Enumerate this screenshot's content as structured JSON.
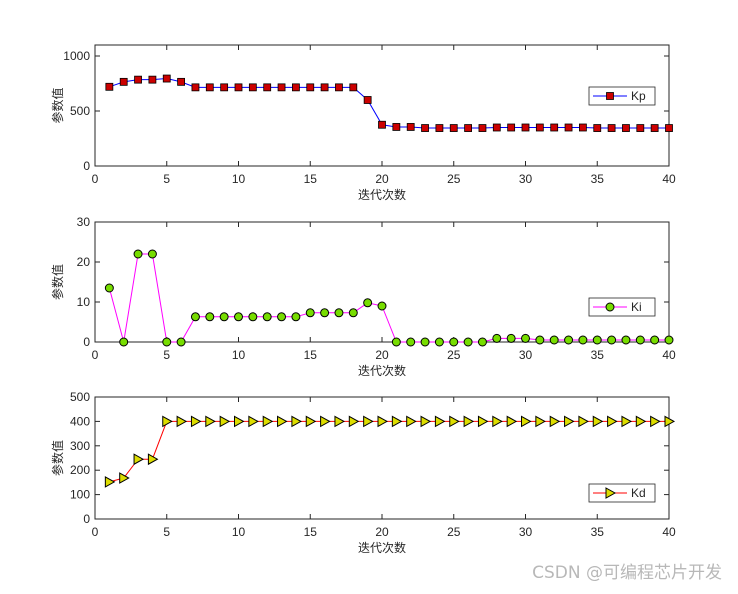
{
  "chart_data": [
    {
      "type": "line",
      "xlabel": "迭代次数",
      "ylabel": "参数值",
      "xlim": [
        0,
        40
      ],
      "ylim": [
        0,
        1100
      ],
      "xticks": [
        0,
        5,
        10,
        15,
        20,
        25,
        30,
        35,
        40
      ],
      "yticks": [
        0,
        500,
        1000
      ],
      "legend": "right",
      "line_color": "#0000ff",
      "marker": "square",
      "marker_color": "#cc0000",
      "series": [
        {
          "name": "Kp",
          "x": [
            1,
            2,
            3,
            4,
            5,
            6,
            7,
            8,
            9,
            10,
            11,
            12,
            13,
            14,
            15,
            16,
            17,
            18,
            19,
            20,
            21,
            22,
            23,
            24,
            25,
            26,
            27,
            28,
            29,
            30,
            31,
            32,
            33,
            34,
            35,
            36,
            37,
            38,
            39,
            40
          ],
          "values": [
            720,
            765,
            785,
            785,
            795,
            765,
            715,
            715,
            715,
            715,
            715,
            715,
            715,
            715,
            715,
            715,
            715,
            715,
            600,
            375,
            355,
            355,
            345,
            345,
            345,
            345,
            345,
            350,
            350,
            350,
            350,
            350,
            350,
            350,
            345,
            345,
            345,
            345,
            345,
            345
          ]
        }
      ]
    },
    {
      "type": "line",
      "xlabel": "迭代次数",
      "ylabel": "参数值",
      "xlim": [
        0,
        40
      ],
      "ylim": [
        0,
        30
      ],
      "xticks": [
        0,
        5,
        10,
        15,
        20,
        25,
        30,
        35,
        40
      ],
      "yticks": [
        0,
        10,
        20,
        30
      ],
      "legend": "right",
      "line_color": "#ff00ff",
      "marker": "circle",
      "marker_color": "#77dd00",
      "series": [
        {
          "name": "Ki",
          "x": [
            1,
            2,
            3,
            4,
            5,
            6,
            7,
            8,
            9,
            10,
            11,
            12,
            13,
            14,
            15,
            16,
            17,
            18,
            19,
            20,
            21,
            22,
            23,
            24,
            25,
            26,
            27,
            28,
            29,
            30,
            31,
            32,
            33,
            34,
            35,
            36,
            37,
            38,
            39,
            40
          ],
          "values": [
            13.5,
            0,
            22,
            22,
            0,
            0,
            6.3,
            6.3,
            6.3,
            6.3,
            6.3,
            6.3,
            6.3,
            6.3,
            7.3,
            7.3,
            7.3,
            7.3,
            9.8,
            9.0,
            0,
            0,
            0,
            0,
            0,
            0,
            0,
            0.9,
            0.9,
            0.9,
            0.5,
            0.5,
            0.5,
            0.5,
            0.5,
            0.5,
            0.5,
            0.5,
            0.5,
            0.5
          ]
        }
      ]
    },
    {
      "type": "line",
      "xlabel": "迭代次数",
      "ylabel": "参数值",
      "xlim": [
        0,
        40
      ],
      "ylim": [
        0,
        500
      ],
      "xticks": [
        0,
        5,
        10,
        15,
        20,
        25,
        30,
        35,
        40
      ],
      "yticks": [
        0,
        100,
        200,
        300,
        400,
        500
      ],
      "legend": "right",
      "line_color": "#ff0000",
      "marker": "triangle-right",
      "marker_color": "#dddd00",
      "series": [
        {
          "name": "Kd",
          "x": [
            1,
            2,
            3,
            4,
            5,
            6,
            7,
            8,
            9,
            10,
            11,
            12,
            13,
            14,
            15,
            16,
            17,
            18,
            19,
            20,
            21,
            22,
            23,
            24,
            25,
            26,
            27,
            28,
            29,
            30,
            31,
            32,
            33,
            34,
            35,
            36,
            37,
            38,
            39,
            40
          ],
          "values": [
            152,
            168,
            245,
            245,
            400,
            400,
            400,
            400,
            400,
            400,
            400,
            400,
            400,
            400,
            400,
            400,
            400,
            400,
            400,
            400,
            400,
            400,
            400,
            400,
            400,
            400,
            400,
            400,
            400,
            400,
            400,
            400,
            400,
            400,
            400,
            400,
            400,
            400,
            400,
            400
          ]
        }
      ]
    }
  ],
  "watermark": "CSDN @可编程芯片开发"
}
